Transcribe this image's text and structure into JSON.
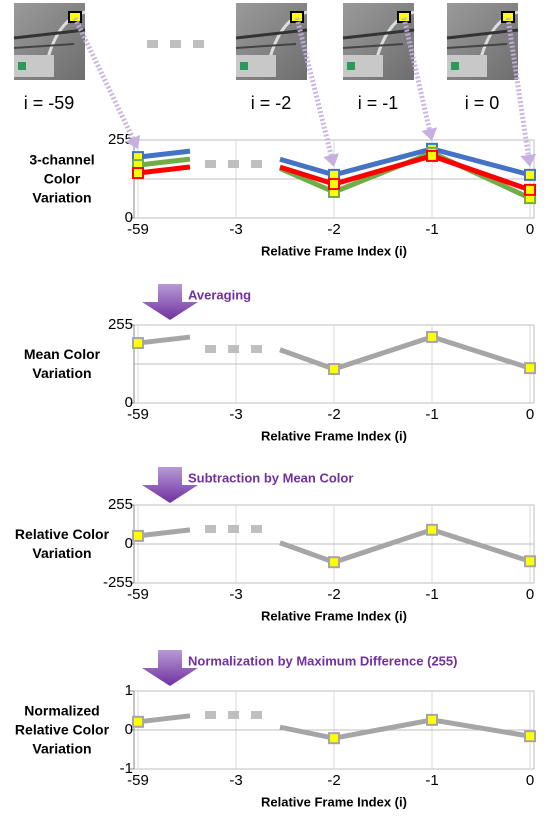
{
  "frames": [
    {
      "label": "i = -59"
    },
    {
      "label": "i = -2"
    },
    {
      "label": "i = -1"
    },
    {
      "label": "i = 0"
    }
  ],
  "steps": [
    "Averaging",
    "Subtraction by Mean Color",
    "Normalization by Maximum Difference (255)"
  ],
  "chart_data": [
    {
      "type": "line",
      "y_label": "3-channel Color Variation",
      "x_label": "Relative Frame Index (i)",
      "categories": [
        "-59",
        "-3",
        "-2",
        "-1",
        "0"
      ],
      "series": [
        {
          "color": "#4472c4",
          "values": [
            199,
            null,
            141,
            226,
            141
          ]
        },
        {
          "color": "#70ad47",
          "values": [
            173,
            null,
            85,
            213,
            65
          ]
        },
        {
          "color": "#ff0000",
          "values": [
            147,
            null,
            111,
            203,
            92
          ]
        }
      ],
      "ylim": [
        0,
        255
      ],
      "yticks": [
        0,
        255
      ],
      "grid": true
    },
    {
      "type": "line",
      "y_label": "Mean Color Variation",
      "x_label": "Relative Frame Index (i)",
      "categories": [
        "-59",
        "-3",
        "-2",
        "-1",
        "0"
      ],
      "series": [
        {
          "color": "#a6a6a6",
          "values": [
            196,
            null,
            111,
            216,
            114
          ]
        }
      ],
      "ylim": [
        0,
        255
      ],
      "yticks": [
        0,
        255
      ],
      "grid": true
    },
    {
      "type": "line",
      "y_label": "Relative Color Variation",
      "x_label": "Relative Frame Index (i)",
      "categories": [
        "-59",
        "-3",
        "-2",
        "-1",
        "0"
      ],
      "series": [
        {
          "color": "#a6a6a6",
          "values": [
            53,
            null,
            -119,
            93,
            -113
          ]
        }
      ],
      "ylim": [
        -255,
        255
      ],
      "yticks": [
        -255,
        0,
        255
      ],
      "grid": true
    },
    {
      "type": "line",
      "y_label": "Normalized Relative Color Variation",
      "x_label": "Relative Frame Index (i)",
      "categories": [
        "-59",
        "-3",
        "-2",
        "-1",
        "0"
      ],
      "series": [
        {
          "color": "#a6a6a6",
          "values": [
            0.21,
            null,
            -0.21,
            0.26,
            -0.16
          ]
        }
      ],
      "ylim": [
        -1,
        1
      ],
      "yticks": [
        -1,
        0,
        1
      ],
      "grid": true
    }
  ]
}
